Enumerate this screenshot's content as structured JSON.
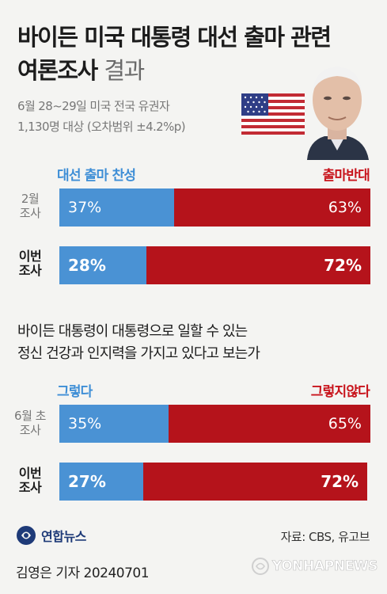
{
  "header": {
    "title_line1": "바이든 미국 대통령 대선 출마 관련",
    "title_line2_bold": "여론조사",
    "title_line2_light": "결과",
    "subtitle_line1": "6월 28~29일 미국 전국 유권자",
    "subtitle_line2": "1,130명 대상 (오차범위 ±4.2%p)"
  },
  "colors": {
    "favor": "#4a92d4",
    "oppose": "#b5131b",
    "brand": "#1e3a78"
  },
  "icons": [
    "us-flag-icon",
    "portrait-photo",
    "yonhap-logo-icon",
    "yonhap-watermark-icon"
  ],
  "chart_data": [
    {
      "type": "bar",
      "stacked": true,
      "orientation": "horizontal",
      "categories": [
        "2월\n조사",
        "이번\n조사"
      ],
      "series": [
        {
          "name": "대선 출마 찬성",
          "values": [
            37,
            28
          ],
          "labels": [
            "37%",
            "28%"
          ]
        },
        {
          "name": "출마반대",
          "values": [
            63,
            72
          ],
          "labels": [
            "63%",
            "72%"
          ]
        }
      ],
      "xlim": [
        0,
        100
      ]
    },
    {
      "type": "bar",
      "stacked": true,
      "orientation": "horizontal",
      "question_line1": "바이든 대통령이 대통령으로 일할 수 있는",
      "question_line2": "정신 건강과 인지력을 가지고 있다고 보는가",
      "categories": [
        "6월 초\n조사",
        "이번\n조사"
      ],
      "series": [
        {
          "name": "그렇다",
          "values": [
            35,
            27
          ],
          "labels": [
            "35%",
            "27%"
          ]
        },
        {
          "name": "그렇지않다",
          "values": [
            65,
            72
          ],
          "labels": [
            "65%",
            "72%"
          ]
        }
      ],
      "xlim": [
        0,
        100
      ]
    }
  ],
  "footer": {
    "logo_text": "연합뉴스",
    "source": "자료: CBS, 유고브",
    "byline": "김영은 기자  20240701",
    "watermark": "YONHAPNEWS"
  }
}
